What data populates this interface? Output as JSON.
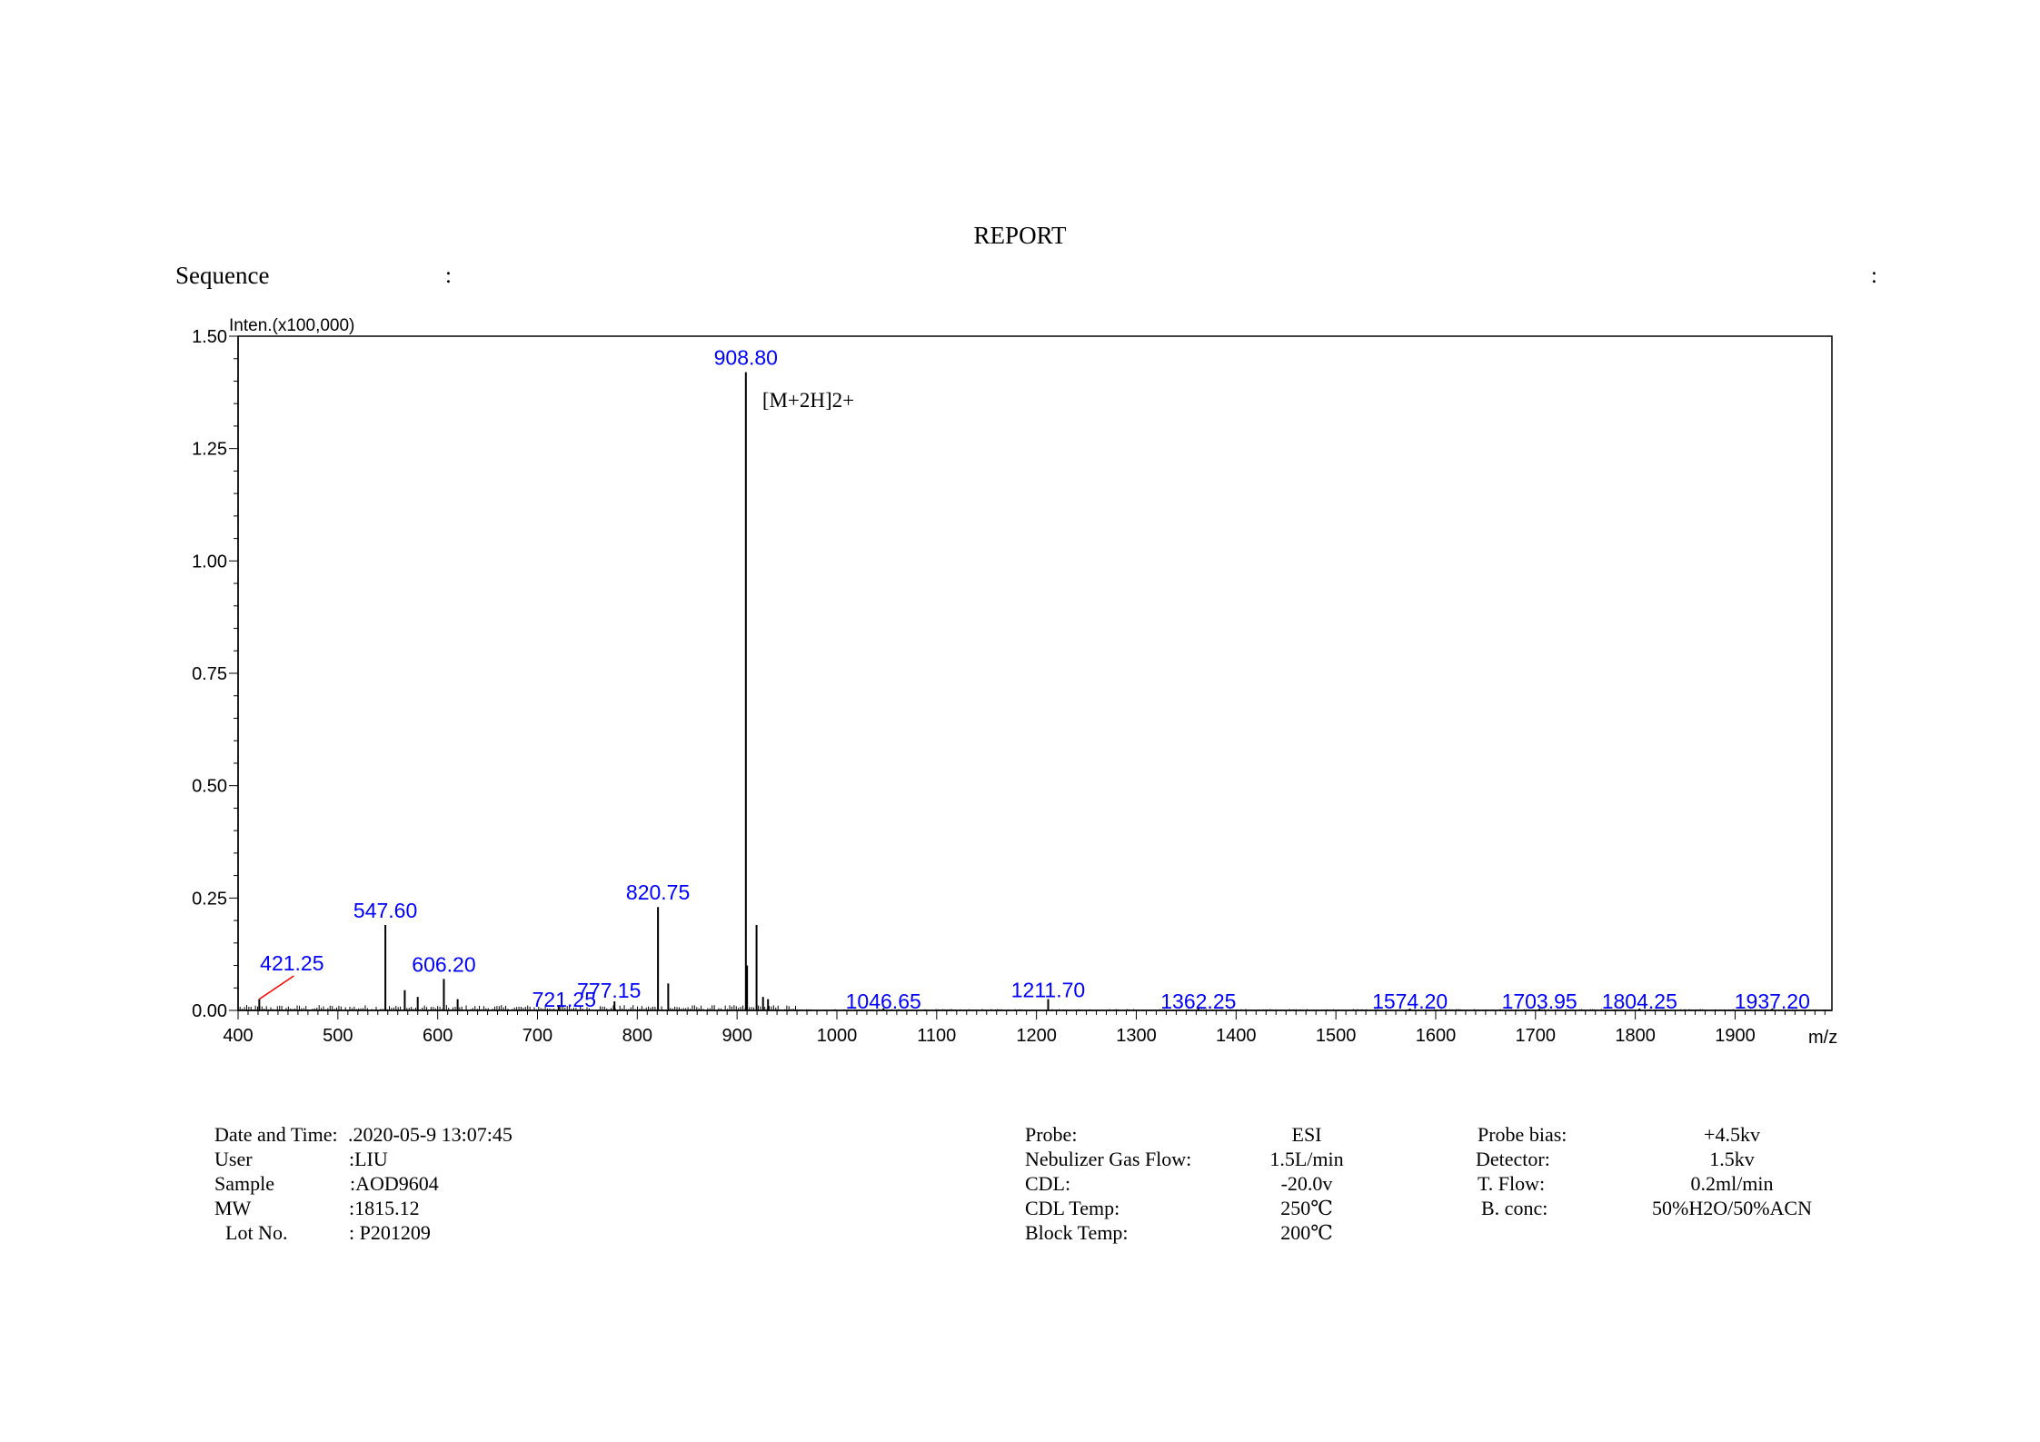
{
  "report": {
    "title": "REPORT",
    "sequence_label": "Sequence",
    "sequence_colon_1": ":",
    "sequence_colon_2": ":"
  },
  "chart_data": {
    "type": "bar",
    "ylabel": "Inten.(x100,000)",
    "xlabel": "m/z",
    "xlim": [
      400,
      1997
    ],
    "ylim": [
      0,
      1.5
    ],
    "x_ticks": [
      400,
      500,
      600,
      700,
      800,
      900,
      1000,
      1100,
      1200,
      1300,
      1400,
      1500,
      1600,
      1700,
      1800,
      1900
    ],
    "y_ticks": [
      "0.00",
      "0.25",
      "0.50",
      "0.75",
      "1.00",
      "1.25",
      "1.50"
    ],
    "peak_color": "#000000",
    "label_color": "#0000ff",
    "annotation_line_color": "#ff0000",
    "peaks": [
      {
        "mz": 421.25,
        "intensity": 0.025,
        "label": "421.25"
      },
      {
        "mz": 547.6,
        "intensity": 0.19,
        "label": "547.60"
      },
      {
        "mz": 567.0,
        "intensity": 0.045
      },
      {
        "mz": 580.0,
        "intensity": 0.03
      },
      {
        "mz": 606.2,
        "intensity": 0.07,
        "label": "606.20"
      },
      {
        "mz": 620.0,
        "intensity": 0.025
      },
      {
        "mz": 721.25,
        "intensity": 0.012,
        "label": "721.25"
      },
      {
        "mz": 777.15,
        "intensity": 0.02,
        "label": "777.15"
      },
      {
        "mz": 820.75,
        "intensity": 0.23,
        "label": "820.75"
      },
      {
        "mz": 831.0,
        "intensity": 0.06
      },
      {
        "mz": 908.8,
        "intensity": 1.42,
        "label": "908.80"
      },
      {
        "mz": 910.0,
        "intensity": 0.1
      },
      {
        "mz": 919.5,
        "intensity": 0.19
      },
      {
        "mz": 926.0,
        "intensity": 0.03
      },
      {
        "mz": 931.0,
        "intensity": 0.025
      },
      {
        "mz": 1046.65,
        "intensity": 0.005,
        "label": "1046.65"
      },
      {
        "mz": 1211.7,
        "intensity": 0.025,
        "label": "1211.70"
      },
      {
        "mz": 1362.25,
        "intensity": 0.004,
        "label": "1362.25"
      },
      {
        "mz": 1574.2,
        "intensity": 0.004,
        "label": "1574.20"
      },
      {
        "mz": 1703.95,
        "intensity": 0.004,
        "label": "1703.95"
      },
      {
        "mz": 1804.25,
        "intensity": 0.004,
        "label": "1804.25"
      },
      {
        "mz": 1937.2,
        "intensity": 0.004,
        "label": "1937.20"
      }
    ],
    "annotations": [
      {
        "text": "[M+2H]2+",
        "mz": 908.8
      }
    ]
  },
  "info_left": [
    {
      "label": "Date and Time:",
      "value": ".2020-05-9 13:07:45"
    },
    {
      "label": "User",
      "value": ":LIU"
    },
    {
      "label": "Sample",
      "value": ":AOD9604"
    },
    {
      "label": "MW",
      "value": ":1815.12"
    },
    {
      "label": "Lot No.",
      "value": ": P201209"
    }
  ],
  "info_mid": [
    {
      "label": "Probe:",
      "value": "ESI"
    },
    {
      "label": "Nebulizer Gas Flow:",
      "value": "1.5L/min"
    },
    {
      "label": "CDL:",
      "value": "-20.0v"
    },
    {
      "label": "CDL Temp:",
      "value": "250℃"
    },
    {
      "label": "Block Temp:",
      "value": "200℃"
    }
  ],
  "info_right": [
    {
      "label": "Probe bias:",
      "value": "+4.5kv"
    },
    {
      "label": "Detector:",
      "value": "1.5kv"
    },
    {
      "label": "T. Flow:",
      "value": "0.2ml/min"
    },
    {
      "label": "B. conc:",
      "value": "50%H2O/50%ACN"
    }
  ]
}
